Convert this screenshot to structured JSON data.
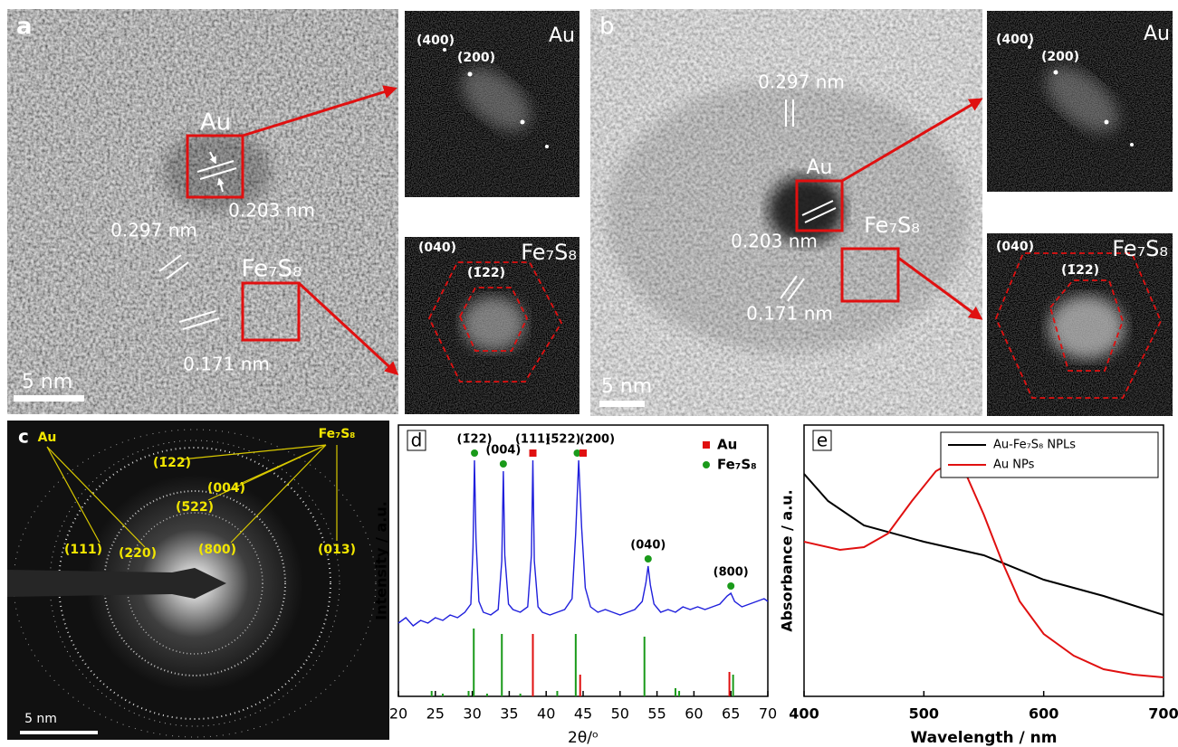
{
  "panels": {
    "a": {
      "label": "a",
      "au": "Au",
      "au_spacing": "0.203 nm",
      "fe_spacing_1": "0.297 nm",
      "fes": "Fe₇S₈",
      "fe_spacing_2": "0.171 nm",
      "scale": "5 nm",
      "fft_au": {
        "p1": "(400)",
        "p2": "(200)",
        "phase": "Au"
      },
      "fft_fe": {
        "p1": "(040)",
        "p2": "(1̄22)",
        "phase": "Fe₇S₈"
      }
    },
    "b": {
      "label": "b",
      "au": "Au",
      "au_spacing": "0.203 nm",
      "fe_spacing_1": "0.297 nm",
      "fes": "Fe₇S₈",
      "fe_spacing_2": "0.171 nm",
      "scale": "5 nm",
      "fft_au": {
        "p1": "(400)",
        "p2": "(200)",
        "phase": "Au"
      },
      "fft_fe": {
        "p1": "(040)",
        "p2": "(1̄22)",
        "phase": "Fe₇S₈"
      }
    },
    "c": {
      "label": "c",
      "au": "Au",
      "fes": "Fe₇S₈",
      "rings": [
        "(1̄22)",
        "(004)",
        "(5̄22)",
        "(111)",
        "(220)",
        "(800)",
        "(013)"
      ],
      "scale": "5 nm"
    }
  },
  "chart_data": [
    {
      "type": "line",
      "panel": "d",
      "xlabel": "2θ/ᵒ",
      "ylabel": "Intensity / a.u.",
      "xlim": [
        20,
        70
      ],
      "xticks": [
        20,
        25,
        30,
        35,
        40,
        45,
        50,
        55,
        60,
        65,
        70
      ],
      "ylim": [
        0,
        100
      ],
      "legend": "upper right",
      "series": [
        {
          "color": "#1f1fdc",
          "x": [
            20,
            21,
            22,
            23,
            24,
            25,
            26,
            27,
            28,
            29,
            29.8,
            30.1,
            30.3,
            30.5,
            30.9,
            31.5,
            32.5,
            33.5,
            34.0,
            34.2,
            34.4,
            34.9,
            35.5,
            36.5,
            37.5,
            38.0,
            38.2,
            38.4,
            38.9,
            39.5,
            40.5,
            41.5,
            42.5,
            43.5,
            44.0,
            44.4,
            44.8,
            45.3,
            46,
            47,
            48,
            49,
            50,
            51,
            52,
            53,
            53.5,
            53.8,
            54.1,
            54.6,
            55.5,
            56.5,
            57.5,
            58.5,
            59.5,
            60.5,
            61.5,
            62.5,
            63.5,
            64.5,
            65,
            65.5,
            66.5,
            67.5,
            68.5,
            69.5,
            70
          ],
          "values": [
            27,
            29,
            26,
            28,
            27,
            29,
            28,
            30,
            29,
            31,
            34,
            55,
            87,
            58,
            35,
            31,
            30,
            32,
            50,
            83,
            52,
            34,
            32,
            31,
            33,
            52,
            87,
            50,
            33,
            31,
            30,
            31,
            32,
            36,
            60,
            87,
            62,
            40,
            33,
            31,
            32,
            31,
            30,
            31,
            32,
            35,
            42,
            48,
            41,
            34,
            31,
            32,
            31,
            33,
            32,
            33,
            32,
            33,
            34,
            37,
            38,
            35,
            33,
            34,
            35,
            36,
            35
          ]
        }
      ],
      "references": [
        {
          "name": "Au",
          "color": "#e01010",
          "marker": "square",
          "x": [
            38.2,
            44.6,
            64.8
          ],
          "values": [
            23,
            8,
            9
          ]
        },
        {
          "name": "Fe₇S₈",
          "color": "#1a9a1a",
          "marker": "circle",
          "x": [
            24.5,
            26,
            29.5,
            30.2,
            32,
            34,
            36.5,
            41.5,
            44,
            53.3,
            57.5,
            58,
            65.3
          ],
          "values": [
            2,
            1,
            2,
            25,
            1,
            23,
            1,
            2,
            23,
            22,
            3,
            2,
            8
          ]
        }
      ],
      "annotations": [
        {
          "text": "(1̄22)",
          "x": 30.3,
          "y": 87,
          "ref": 1
        },
        {
          "text": "(004)",
          "x": 34.2,
          "y": 83,
          "ref": 1
        },
        {
          "text": "(111)",
          "x": 38.2,
          "y": 87,
          "ref": 0
        },
        {
          "text": "(5̄22)",
          "x": 44.2,
          "y": 87,
          "ref": 1
        },
        {
          "text": "(200)",
          "x": 45.0,
          "y": 87,
          "ref": 0
        },
        {
          "text": "(040)",
          "x": 53.8,
          "y": 48,
          "ref": 1
        },
        {
          "text": "(800)",
          "x": 65,
          "y": 38,
          "ref": 1
        }
      ]
    },
    {
      "type": "line",
      "panel": "e",
      "xlabel": "Wavelength / nm",
      "ylabel": "Absorbance / a.u.",
      "xlim": [
        400,
        700
      ],
      "xticks": [
        400,
        500,
        600,
        700
      ],
      "ylim": [
        0,
        100
      ],
      "legend": "upper right",
      "series": [
        {
          "name": "Au-Fe₇S₈ NPLs",
          "color": "#000000",
          "x": [
            400,
            420,
            450,
            500,
            550,
            600,
            650,
            700
          ],
          "values": [
            82,
            72,
            63,
            57,
            52,
            43,
            37,
            30
          ]
        },
        {
          "name": "Au NPs",
          "color": "#e01010",
          "x": [
            400,
            430,
            450,
            470,
            490,
            510,
            522,
            535,
            550,
            565,
            580,
            600,
            625,
            650,
            675,
            700
          ],
          "values": [
            57,
            54,
            55,
            60,
            72,
            83,
            86,
            82,
            67,
            50,
            35,
            23,
            15,
            10,
            8,
            7
          ]
        }
      ]
    }
  ]
}
